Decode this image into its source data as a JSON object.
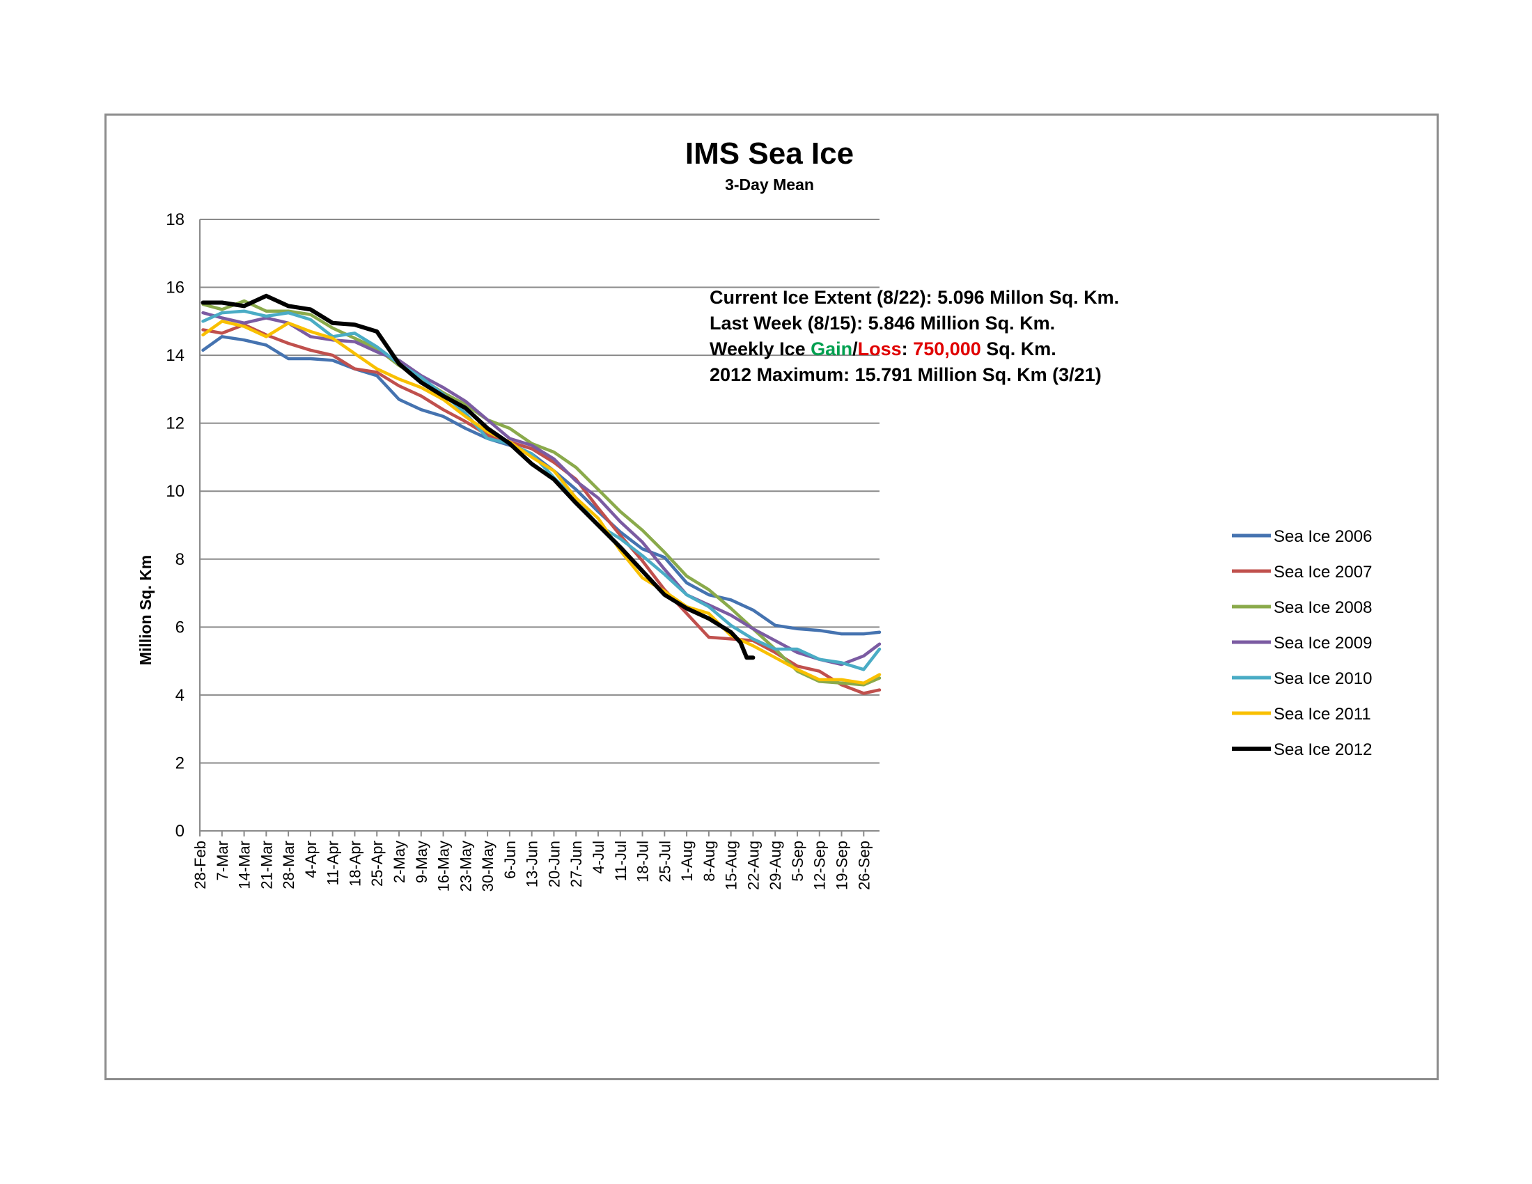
{
  "chart_data": {
    "type": "line",
    "title": "IMS Sea Ice",
    "subtitle": "3-Day Mean",
    "ylabel": "Million Sq. Km",
    "xlabel": "",
    "ylim": [
      0,
      18
    ],
    "yticks": [
      0,
      2,
      4,
      6,
      8,
      10,
      12,
      14,
      16,
      18
    ],
    "grid": true,
    "legend_position": "right",
    "x_tick_labels": [
      "28-Feb",
      "7-Mar",
      "14-Mar",
      "21-Mar",
      "28-Mar",
      "4-Apr",
      "11-Apr",
      "18-Apr",
      "25-Apr",
      "2-May",
      "9-May",
      "16-May",
      "23-May",
      "30-May",
      "6-Jun",
      "13-Jun",
      "20-Jun",
      "27-Jun",
      "4-Jul",
      "11-Jul",
      "18-Jul",
      "25-Jul",
      "1-Aug",
      "8-Aug",
      "15-Aug",
      "22-Aug",
      "29-Aug",
      "5-Sep",
      "12-Sep",
      "19-Sep",
      "26-Sep"
    ],
    "x_day_range": [
      0,
      215
    ],
    "x_tick_interval_days": 7,
    "annotations": {
      "line1": "Current Ice Extent (8/22): 5.096 Millon Sq. Km.",
      "line2": "Last Week (8/15): 5.846 Million Sq. Km.",
      "line3_prefix": "Weekly Ice ",
      "line3_gain": "Gain",
      "line3_sep": "/",
      "line3_loss": "Loss",
      "line3_colon": ": ",
      "line3_value": "750,000",
      "line3_suffix": " Sq. Km.",
      "line4": "2012 Maximum: 15.791 Million Sq. Km (3/21)",
      "gain_color": "#00a050",
      "loss_color": "#e00000"
    },
    "series": [
      {
        "name": "Sea Ice 2006",
        "color": "#4573b0",
        "points": [
          [
            1,
            14.15
          ],
          [
            7,
            14.55
          ],
          [
            14,
            14.45
          ],
          [
            21,
            14.3
          ],
          [
            28,
            13.9
          ],
          [
            35,
            13.9
          ],
          [
            42,
            13.85
          ],
          [
            49,
            13.6
          ],
          [
            56,
            13.4
          ],
          [
            63,
            12.7
          ],
          [
            70,
            12.4
          ],
          [
            77,
            12.2
          ],
          [
            84,
            11.85
          ],
          [
            91,
            11.55
          ],
          [
            98,
            11.35
          ],
          [
            105,
            11.1
          ],
          [
            112,
            10.6
          ],
          [
            119,
            10.05
          ],
          [
            126,
            9.4
          ],
          [
            133,
            8.8
          ],
          [
            140,
            8.3
          ],
          [
            147,
            8.05
          ],
          [
            154,
            7.3
          ],
          [
            161,
            6.95
          ],
          [
            168,
            6.8
          ],
          [
            175,
            6.5
          ],
          [
            182,
            6.05
          ],
          [
            189,
            5.95
          ],
          [
            196,
            5.9
          ],
          [
            203,
            5.8
          ],
          [
            210,
            5.8
          ],
          [
            215,
            5.85
          ]
        ]
      },
      {
        "name": "Sea Ice 2007",
        "color": "#c0504d",
        "points": [
          [
            1,
            14.75
          ],
          [
            7,
            14.65
          ],
          [
            14,
            14.9
          ],
          [
            21,
            14.6
          ],
          [
            28,
            14.35
          ],
          [
            35,
            14.15
          ],
          [
            42,
            14.0
          ],
          [
            49,
            13.6
          ],
          [
            56,
            13.5
          ],
          [
            63,
            13.1
          ],
          [
            70,
            12.8
          ],
          [
            77,
            12.4
          ],
          [
            84,
            12.05
          ],
          [
            91,
            11.65
          ],
          [
            98,
            11.45
          ],
          [
            105,
            11.25
          ],
          [
            112,
            10.85
          ],
          [
            119,
            10.35
          ],
          [
            126,
            9.5
          ],
          [
            133,
            8.7
          ],
          [
            140,
            7.95
          ],
          [
            147,
            7.1
          ],
          [
            154,
            6.4
          ],
          [
            161,
            5.7
          ],
          [
            168,
            5.65
          ],
          [
            175,
            5.6
          ],
          [
            182,
            5.25
          ],
          [
            189,
            4.85
          ],
          [
            196,
            4.7
          ],
          [
            203,
            4.3
          ],
          [
            210,
            4.05
          ],
          [
            215,
            4.15
          ]
        ]
      },
      {
        "name": "Sea Ice 2008",
        "color": "#8aaa4b",
        "points": [
          [
            1,
            15.5
          ],
          [
            7,
            15.35
          ],
          [
            14,
            15.6
          ],
          [
            21,
            15.3
          ],
          [
            28,
            15.3
          ],
          [
            35,
            15.2
          ],
          [
            42,
            14.8
          ],
          [
            49,
            14.5
          ],
          [
            56,
            14.2
          ],
          [
            63,
            13.7
          ],
          [
            70,
            13.3
          ],
          [
            77,
            12.9
          ],
          [
            84,
            12.55
          ],
          [
            91,
            12.1
          ],
          [
            98,
            11.85
          ],
          [
            105,
            11.4
          ],
          [
            112,
            11.15
          ],
          [
            119,
            10.7
          ],
          [
            126,
            10.05
          ],
          [
            133,
            9.4
          ],
          [
            140,
            8.85
          ],
          [
            147,
            8.2
          ],
          [
            154,
            7.5
          ],
          [
            161,
            7.1
          ],
          [
            168,
            6.55
          ],
          [
            175,
            5.95
          ],
          [
            182,
            5.35
          ],
          [
            189,
            4.7
          ],
          [
            196,
            4.4
          ],
          [
            203,
            4.35
          ],
          [
            210,
            4.3
          ],
          [
            215,
            4.5
          ]
        ]
      },
      {
        "name": "Sea Ice 2009",
        "color": "#7b5ba2",
        "points": [
          [
            1,
            15.25
          ],
          [
            7,
            15.1
          ],
          [
            14,
            14.95
          ],
          [
            21,
            15.1
          ],
          [
            28,
            14.95
          ],
          [
            35,
            14.55
          ],
          [
            42,
            14.45
          ],
          [
            49,
            14.4
          ],
          [
            56,
            14.1
          ],
          [
            63,
            13.85
          ],
          [
            70,
            13.4
          ],
          [
            77,
            13.05
          ],
          [
            84,
            12.65
          ],
          [
            91,
            12.1
          ],
          [
            98,
            11.55
          ],
          [
            105,
            11.35
          ],
          [
            112,
            10.95
          ],
          [
            119,
            10.3
          ],
          [
            126,
            9.8
          ],
          [
            133,
            9.1
          ],
          [
            140,
            8.5
          ],
          [
            147,
            7.7
          ],
          [
            154,
            6.95
          ],
          [
            161,
            6.65
          ],
          [
            168,
            6.35
          ],
          [
            175,
            5.95
          ],
          [
            182,
            5.6
          ],
          [
            189,
            5.25
          ],
          [
            196,
            5.05
          ],
          [
            203,
            4.9
          ],
          [
            210,
            5.15
          ],
          [
            215,
            5.5
          ]
        ]
      },
      {
        "name": "Sea Ice 2010",
        "color": "#4aacc5",
        "points": [
          [
            1,
            15.0
          ],
          [
            7,
            15.25
          ],
          [
            14,
            15.3
          ],
          [
            21,
            15.15
          ],
          [
            28,
            15.25
          ],
          [
            35,
            15.05
          ],
          [
            42,
            14.55
          ],
          [
            49,
            14.65
          ],
          [
            56,
            14.25
          ],
          [
            63,
            13.75
          ],
          [
            70,
            13.35
          ],
          [
            77,
            12.85
          ],
          [
            84,
            12.3
          ],
          [
            91,
            11.55
          ],
          [
            98,
            11.4
          ],
          [
            105,
            11.1
          ],
          [
            112,
            10.4
          ],
          [
            119,
            9.75
          ],
          [
            126,
            9.0
          ],
          [
            133,
            8.6
          ],
          [
            140,
            8.1
          ],
          [
            147,
            7.55
          ],
          [
            154,
            6.95
          ],
          [
            161,
            6.6
          ],
          [
            168,
            6.05
          ],
          [
            175,
            5.65
          ],
          [
            182,
            5.35
          ],
          [
            189,
            5.35
          ],
          [
            196,
            5.05
          ],
          [
            203,
            4.95
          ],
          [
            210,
            4.75
          ],
          [
            215,
            5.35
          ]
        ]
      },
      {
        "name": "Sea Ice 2011",
        "color": "#f9c000",
        "points": [
          [
            1,
            14.6
          ],
          [
            7,
            15.0
          ],
          [
            14,
            14.85
          ],
          [
            21,
            14.55
          ],
          [
            28,
            14.95
          ],
          [
            35,
            14.7
          ],
          [
            42,
            14.5
          ],
          [
            49,
            14.05
          ],
          [
            56,
            13.6
          ],
          [
            63,
            13.3
          ],
          [
            70,
            13.05
          ],
          [
            77,
            12.7
          ],
          [
            84,
            12.2
          ],
          [
            91,
            11.75
          ],
          [
            98,
            11.45
          ],
          [
            105,
            11.0
          ],
          [
            112,
            10.6
          ],
          [
            119,
            9.8
          ],
          [
            126,
            9.2
          ],
          [
            133,
            8.25
          ],
          [
            140,
            7.45
          ],
          [
            147,
            7.05
          ],
          [
            154,
            6.6
          ],
          [
            161,
            6.4
          ],
          [
            168,
            5.75
          ],
          [
            175,
            5.45
          ],
          [
            182,
            5.1
          ],
          [
            189,
            4.75
          ],
          [
            196,
            4.45
          ],
          [
            203,
            4.45
          ],
          [
            210,
            4.35
          ],
          [
            215,
            4.6
          ]
        ]
      },
      {
        "name": "Sea Ice 2012",
        "color": "#000000",
        "points": [
          [
            1,
            15.55
          ],
          [
            7,
            15.55
          ],
          [
            14,
            15.45
          ],
          [
            21,
            15.75
          ],
          [
            28,
            15.45
          ],
          [
            35,
            15.35
          ],
          [
            42,
            14.95
          ],
          [
            49,
            14.9
          ],
          [
            56,
            14.7
          ],
          [
            63,
            13.75
          ],
          [
            70,
            13.2
          ],
          [
            77,
            12.8
          ],
          [
            84,
            12.45
          ],
          [
            91,
            11.85
          ],
          [
            98,
            11.4
          ],
          [
            105,
            10.8
          ],
          [
            112,
            10.35
          ],
          [
            119,
            9.65
          ],
          [
            126,
            9.0
          ],
          [
            133,
            8.35
          ],
          [
            140,
            7.65
          ],
          [
            147,
            6.95
          ],
          [
            154,
            6.55
          ],
          [
            161,
            6.25
          ],
          [
            168,
            5.85
          ],
          [
            171,
            5.55
          ],
          [
            173,
            5.1
          ],
          [
            175,
            5.1
          ]
        ]
      }
    ]
  }
}
